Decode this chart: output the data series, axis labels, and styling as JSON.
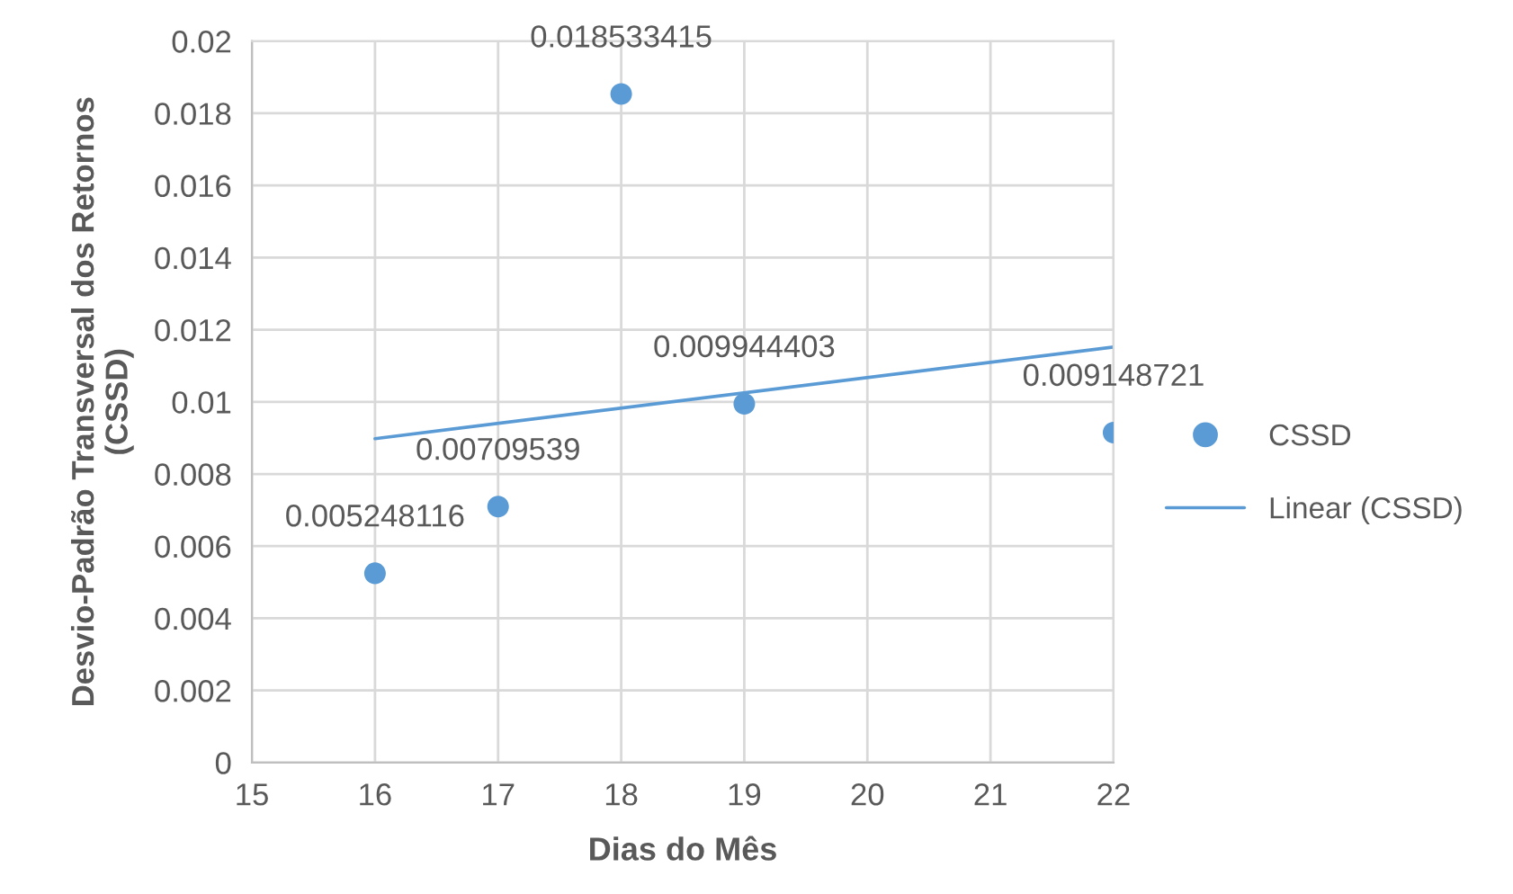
{
  "chart_data": {
    "type": "scatter",
    "xlabel": "Dias do Mês",
    "ylabel": "Desvio-Padrão Transversal dos Retornos\n(CSSD)",
    "xlim": [
      15,
      22
    ],
    "xticks": [
      15,
      16,
      17,
      18,
      19,
      20,
      21,
      22
    ],
    "ylim": [
      0,
      0.02
    ],
    "yticks": [
      0,
      0.002,
      0.004,
      0.006,
      0.008,
      0.01,
      0.012,
      0.014,
      0.016,
      0.018,
      0.02
    ],
    "grid": true,
    "legend": "right",
    "series": [
      {
        "name": "CSSD",
        "marker": "circle",
        "color": "#5b9bd5",
        "x": [
          16,
          17,
          18,
          19,
          22
        ],
        "values": [
          0.005248116,
          0.00709539,
          0.018533415,
          0.009944403,
          0.009148721
        ],
        "value_labels": [
          "0.005248116",
          "0.00709539",
          "0.018533415",
          "0.009944403",
          "0.009148721"
        ]
      },
      {
        "name": "Linear (CSSD)",
        "type": "line",
        "color": "#5b9bd5",
        "x": [
          16,
          22
        ],
        "values": [
          0.00898,
          0.01152
        ],
        "line_style": "solid"
      }
    ]
  }
}
